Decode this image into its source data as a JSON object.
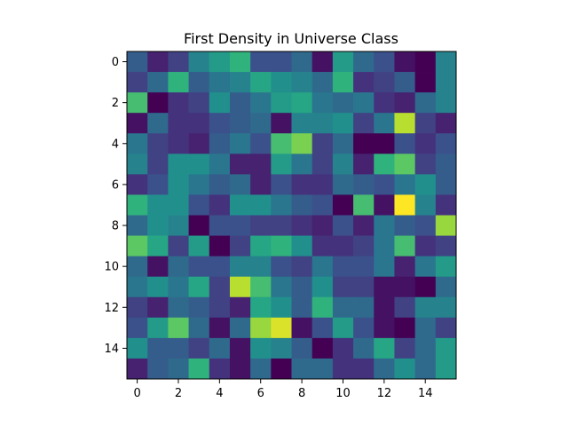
{
  "chart_data": {
    "type": "heatmap",
    "title": "First Density in Universe Class",
    "xlabel": "",
    "ylabel": "",
    "colormap": "viridis",
    "vmin": 0.0,
    "vmax": 1.0,
    "x_ticks": [
      0,
      2,
      4,
      6,
      8,
      10,
      12,
      14
    ],
    "y_ticks": [
      0,
      2,
      4,
      6,
      8,
      10,
      12,
      14
    ],
    "xlim": [
      -0.5,
      15.5
    ],
    "ylim": [
      15.5,
      -0.5
    ],
    "grid": false,
    "values": [
      [
        0.3,
        0.1,
        0.2,
        0.45,
        0.55,
        0.65,
        0.25,
        0.25,
        0.35,
        0.05,
        0.55,
        0.35,
        0.25,
        0.05,
        0.0,
        0.45
      ],
      [
        0.2,
        0.35,
        0.65,
        0.3,
        0.4,
        0.45,
        0.6,
        0.5,
        0.45,
        0.35,
        0.65,
        0.15,
        0.2,
        0.3,
        0.0,
        0.45
      ],
      [
        0.7,
        0.0,
        0.15,
        0.2,
        0.5,
        0.3,
        0.4,
        0.55,
        0.6,
        0.4,
        0.35,
        0.4,
        0.15,
        0.1,
        0.35,
        0.45
      ],
      [
        0.05,
        0.35,
        0.15,
        0.15,
        0.25,
        0.3,
        0.35,
        0.05,
        0.45,
        0.45,
        0.5,
        0.2,
        0.4,
        0.9,
        0.2,
        0.1
      ],
      [
        0.4,
        0.2,
        0.15,
        0.1,
        0.3,
        0.4,
        0.25,
        0.7,
        0.8,
        0.2,
        0.35,
        0.0,
        0.0,
        0.25,
        0.15,
        0.25
      ],
      [
        0.45,
        0.2,
        0.5,
        0.5,
        0.4,
        0.1,
        0.1,
        0.55,
        0.4,
        0.2,
        0.45,
        0.1,
        0.65,
        0.75,
        0.2,
        0.3
      ],
      [
        0.15,
        0.25,
        0.5,
        0.4,
        0.3,
        0.35,
        0.1,
        0.25,
        0.15,
        0.15,
        0.35,
        0.3,
        0.25,
        0.4,
        0.5,
        0.3
      ],
      [
        0.65,
        0.5,
        0.5,
        0.25,
        0.15,
        0.5,
        0.5,
        0.4,
        0.3,
        0.25,
        0.0,
        0.7,
        0.05,
        1.0,
        0.45,
        0.15
      ],
      [
        0.35,
        0.5,
        0.45,
        0.0,
        0.25,
        0.25,
        0.2,
        0.2,
        0.15,
        0.1,
        0.25,
        0.1,
        0.4,
        0.3,
        0.25,
        0.85
      ],
      [
        0.75,
        0.6,
        0.2,
        0.55,
        0.0,
        0.2,
        0.6,
        0.65,
        0.5,
        0.15,
        0.15,
        0.2,
        0.4,
        0.7,
        0.15,
        0.2
      ],
      [
        0.35,
        0.05,
        0.35,
        0.25,
        0.25,
        0.45,
        0.45,
        0.25,
        0.2,
        0.4,
        0.25,
        0.25,
        0.4,
        0.1,
        0.4,
        0.55
      ],
      [
        0.4,
        0.5,
        0.4,
        0.6,
        0.2,
        0.9,
        0.7,
        0.4,
        0.3,
        0.5,
        0.2,
        0.2,
        0.05,
        0.05,
        0.0,
        0.35
      ],
      [
        0.2,
        0.1,
        0.35,
        0.3,
        0.2,
        0.1,
        0.6,
        0.5,
        0.3,
        0.65,
        0.35,
        0.35,
        0.05,
        0.2,
        0.45,
        0.45
      ],
      [
        0.25,
        0.55,
        0.75,
        0.35,
        0.05,
        0.35,
        0.85,
        0.95,
        0.05,
        0.25,
        0.55,
        0.25,
        0.05,
        0.0,
        0.35,
        0.2
      ],
      [
        0.5,
        0.3,
        0.3,
        0.2,
        0.35,
        0.05,
        0.5,
        0.45,
        0.3,
        0.0,
        0.15,
        0.35,
        0.6,
        0.2,
        0.35,
        0.55
      ],
      [
        0.1,
        0.3,
        0.35,
        0.65,
        0.15,
        0.05,
        0.35,
        0.0,
        0.35,
        0.35,
        0.15,
        0.15,
        0.35,
        0.5,
        0.35,
        0.55
      ]
    ]
  }
}
